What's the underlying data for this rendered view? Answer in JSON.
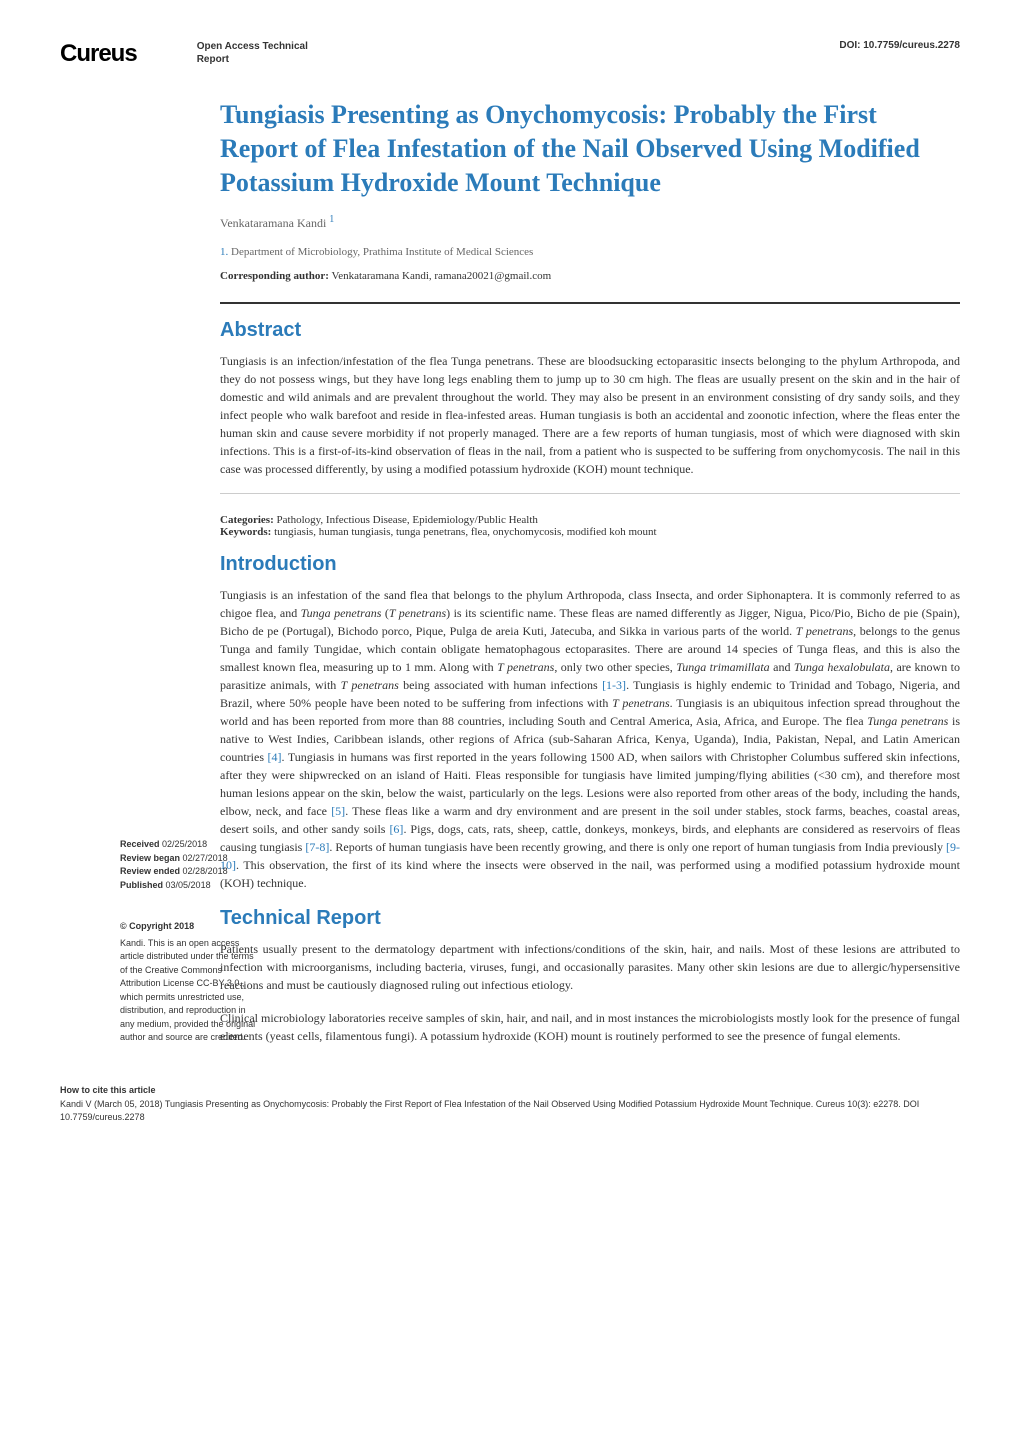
{
  "header": {
    "logo": "Cureus",
    "access_label_line1": "Open Access Technical",
    "access_label_line2": "Report",
    "doi_label": "DOI:",
    "doi_value": "10.7759/cureus.2278"
  },
  "article": {
    "title": "Tungiasis Presenting as Onychomycosis: Probably the First Report of Flea Infestation of the Nail Observed Using Modified Potassium Hydroxide Mount Technique",
    "author": "Venkataramana Kandi",
    "author_ref": "1",
    "affiliation_num": "1.",
    "affiliation": "Department of Microbiology, Prathima Institute of Medical Sciences",
    "corresponding_label": "Corresponding author:",
    "corresponding_value": "Venkataramana Kandi, ramana20021@gmail.com"
  },
  "abstract": {
    "heading": "Abstract",
    "text": "Tungiasis is an infection/infestation of the flea Tunga penetrans. These are bloodsucking ectoparasitic insects belonging to the phylum Arthropoda, and they do not possess wings, but they have long legs enabling them to jump up to 30 cm high. The fleas are usually present on the skin and in the hair of domestic and wild animals and are prevalent throughout the world. They may also be present in an environment consisting of dry sandy soils, and they infect people who walk barefoot and reside in flea-infested areas. Human tungiasis is both an accidental and zoonotic infection, where the fleas enter the human skin and cause severe morbidity if not properly managed. There are a few reports of human tungiasis, most of which were diagnosed with skin infections. This is a first-of-its-kind observation of fleas in the nail, from a patient who is suspected to be suffering from onychomycosis. The nail in this case was processed differently, by using a modified potassium hydroxide (KOH) mount technique."
  },
  "meta": {
    "categories_label": "Categories:",
    "categories_value": "Pathology, Infectious Disease, Epidemiology/Public Health",
    "keywords_label": "Keywords:",
    "keywords_value": "tungiasis, human tungiasis, tunga penetrans, flea, onychomycosis, modified koh mount"
  },
  "introduction": {
    "heading": "Introduction",
    "text_part1": "Tungiasis is an infestation of the sand flea that belongs to the phylum Arthropoda, class Insecta, and order Siphonaptera. It is commonly referred to as chigoe flea, and ",
    "text_italic1": "Tunga penetrans",
    "text_part2": " (",
    "text_italic2": "T penetrans",
    "text_part3": ") is its scientific name. These fleas are named differently as Jigger, Nigua, Pico/Pio, Bicho de pie (Spain), Bicho de pe (Portugal), Bichodo porco, Pique, Pulga de areia Kuti, Jatecuba, and Sikka in various parts of the world. ",
    "text_italic3": "T penetrans",
    "text_part4": ", belongs to the genus Tunga and family Tungidae, which contain obligate hematophagous ectoparasites. There are around 14 species of Tunga fleas, and this is also the smallest known flea, measuring up to 1 mm. Along with ",
    "text_italic4": "T penetrans",
    "text_part5": ", only two other species, ",
    "text_italic5": "Tunga trimamillata",
    "text_part6": " and ",
    "text_italic6": "Tunga hexalobulata",
    "text_part7": ", are known to parasitize animals, with ",
    "text_italic7": "T penetrans",
    "text_part8": " being associated with human infections ",
    "ref1": "[1-3]",
    "text_part9": ". Tungiasis is highly endemic to Trinidad and Tobago, Nigeria, and Brazil, where 50% people have been noted to be suffering from infections with ",
    "text_italic8": "T penetrans",
    "text_part10": ". Tungiasis is an ubiquitous infection spread throughout the world and has been reported from more than 88 countries, including South and Central America, Asia, Africa, and Europe. The flea ",
    "text_italic9": "Tunga penetrans",
    "text_part11": " is native to West Indies, Caribbean islands, other regions of Africa (sub-Saharan Africa, Kenya, Uganda), India, Pakistan, Nepal, and Latin American countries ",
    "ref2": "[4]",
    "text_part12": ". Tungiasis in humans was first reported in the years following 1500 AD, when sailors with Christopher Columbus suffered skin infections, after they were shipwrecked on an island of Haiti. Fleas responsible for tungiasis have limited jumping/flying abilities (<30 cm), and therefore most human lesions appear on the skin, below the waist, particularly on the legs. Lesions were also reported from other areas of the body, including the hands, elbow, neck, and face ",
    "ref3": "[5]",
    "text_part13": ". These fleas like a warm and dry environment and are present in the soil under stables, stock farms, beaches, coastal areas, desert soils, and other sandy soils ",
    "ref4": "[6]",
    "text_part14": ". Pigs, dogs, cats, rats, sheep, cattle, donkeys, monkeys, birds, and elephants are considered as reservoirs of fleas causing tungiasis ",
    "ref5": "[7-8]",
    "text_part15": ". Reports of human tungiasis have been recently growing, and there is only one report of human tungiasis from India previously ",
    "ref6": "[9-10]",
    "text_part16": ". This observation, the first of its kind where the insects were observed in the nail, was performed using a modified potassium hydroxide mount (KOH) technique."
  },
  "technical_report": {
    "heading": "Technical Report",
    "para1": "Patients usually present to the dermatology department with infections/conditions of the skin, hair, and nails. Most of these lesions are attributed to infection with microorganisms, including bacteria, viruses, fungi, and occasionally parasites. Many other skin lesions are due to allergic/hypersensitive reactions and must be cautiously diagnosed ruling out infectious etiology.",
    "para2": "Clinical microbiology laboratories receive samples of skin, hair, and nail, and in most instances the microbiologists mostly look for the presence of fungal elements (yeast cells, filamentous fungi). A potassium hydroxide (KOH) mount is routinely performed to see the presence of fungal elements."
  },
  "sidebar": {
    "received_label": "Received",
    "received_value": "02/25/2018",
    "review_began_label": "Review began",
    "review_began_value": "02/27/2018",
    "review_ended_label": "Review ended",
    "review_ended_value": "02/28/2018",
    "published_label": "Published",
    "published_value": "03/05/2018",
    "copyright_heading": "© Copyright",
    "copyright_year": "2018",
    "copyright_text": "Kandi. This is an open access article distributed under the terms of the Creative Commons Attribution License CC-BY 3.0., which permits unrestricted use, distribution, and reproduction in any medium, provided the original author and source are credited."
  },
  "footer": {
    "heading": "How to cite this article",
    "citation": "Kandi V (March 05, 2018) Tungiasis Presenting as Onychomycosis: Probably the First Report of Flea Infestation of the Nail Observed Using Modified Potassium Hydroxide Mount Technique. Cureus 10(3): e2278. DOI 10.7759/cureus.2278"
  },
  "colors": {
    "primary_blue": "#2b7bb9",
    "text_dark": "#333333",
    "text_gray": "#666666",
    "background": "#ffffff"
  }
}
